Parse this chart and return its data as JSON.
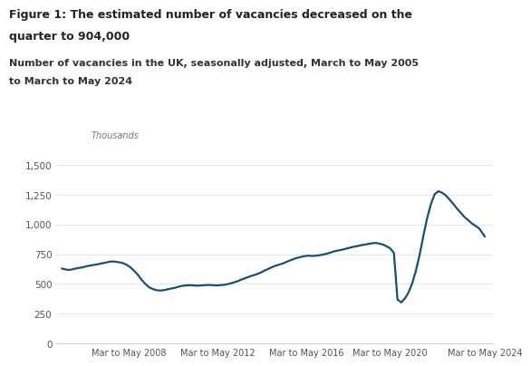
{
  "title_line1": "Figure 1: The estimated number of vacancies decreased on the",
  "title_line2": "quarter to 904,000",
  "subtitle_line1": "Number of vacancies in the UK, seasonally adjusted, March to May 2005",
  "subtitle_line2": "to March to May 2024",
  "ylabel_text": "Thousands",
  "line_color": "#1b4f72",
  "background_color": "#ffffff",
  "ylim": [
    0,
    1600
  ],
  "yticks": [
    0,
    250,
    500,
    750,
    1000,
    1250,
    1500
  ],
  "xtick_labels": [
    "Mar to May 2008",
    "Mar to May 2012",
    "Mar to May 2016",
    "Mar to May 2020",
    "Mar to May 2024"
  ],
  "data": {
    "years_approx": [
      2005.25,
      2005.42,
      2005.58,
      2005.75,
      2006.0,
      2006.17,
      2006.33,
      2006.5,
      2006.67,
      2006.83,
      2007.0,
      2007.17,
      2007.33,
      2007.5,
      2007.67,
      2007.83,
      2008.0,
      2008.17,
      2008.33,
      2008.5,
      2008.67,
      2008.83,
      2009.0,
      2009.17,
      2009.33,
      2009.5,
      2009.67,
      2009.83,
      2010.0,
      2010.17,
      2010.33,
      2010.5,
      2010.67,
      2010.83,
      2011.0,
      2011.17,
      2011.33,
      2011.5,
      2011.67,
      2011.83,
      2012.0,
      2012.17,
      2012.33,
      2012.5,
      2012.67,
      2012.83,
      2013.0,
      2013.17,
      2013.33,
      2013.5,
      2013.67,
      2013.83,
      2014.0,
      2014.17,
      2014.33,
      2014.5,
      2014.67,
      2014.83,
      2015.0,
      2015.17,
      2015.33,
      2015.5,
      2015.67,
      2015.83,
      2016.0,
      2016.17,
      2016.33,
      2016.5,
      2016.67,
      2016.83,
      2017.0,
      2017.17,
      2017.33,
      2017.5,
      2017.67,
      2017.83,
      2018.0,
      2018.17,
      2018.33,
      2018.5,
      2018.67,
      2018.83,
      2019.0,
      2019.17,
      2019.33,
      2019.5,
      2019.67,
      2019.83,
      2020.0,
      2020.17,
      2020.33,
      2020.5,
      2020.67,
      2020.83,
      2021.0,
      2021.17,
      2021.33,
      2021.5,
      2021.67,
      2021.83,
      2022.0,
      2022.17,
      2022.33,
      2022.5,
      2022.67,
      2022.83,
      2023.0,
      2023.17,
      2023.33,
      2023.5,
      2023.67,
      2023.83,
      2024.0,
      2024.25
    ],
    "values": [
      630,
      622,
      618,
      625,
      635,
      640,
      648,
      655,
      660,
      665,
      672,
      678,
      685,
      690,
      687,
      682,
      675,
      660,
      640,
      610,
      575,
      535,
      500,
      472,
      458,
      448,
      445,
      448,
      455,
      462,
      468,
      478,
      485,
      488,
      490,
      488,
      486,
      488,
      490,
      492,
      490,
      488,
      490,
      492,
      498,
      505,
      515,
      525,
      538,
      550,
      562,
      572,
      582,
      595,
      610,
      625,
      640,
      652,
      662,
      672,
      685,
      698,
      710,
      720,
      728,
      735,
      738,
      736,
      738,
      742,
      748,
      756,
      765,
      775,
      782,
      788,
      796,
      804,
      812,
      818,
      825,
      830,
      836,
      842,
      846,
      840,
      832,
      818,
      800,
      760,
      370,
      345,
      380,
      430,
      510,
      620,
      750,
      910,
      1060,
      1170,
      1255,
      1280,
      1268,
      1245,
      1210,
      1175,
      1135,
      1100,
      1065,
      1038,
      1010,
      990,
      968,
      900
    ]
  }
}
